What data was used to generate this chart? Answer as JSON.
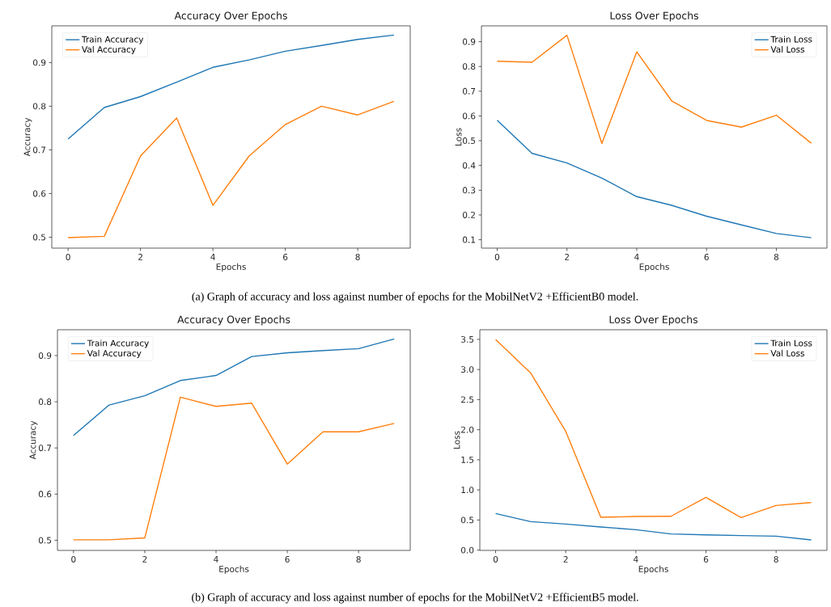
{
  "chart_data": [
    {
      "type": "line",
      "title": "Accuracy Over Epochs",
      "xlabel": "Epochs",
      "ylabel": "Accuracy",
      "x": [
        0,
        1,
        2,
        3,
        4,
        5,
        6,
        7,
        8,
        9
      ],
      "series": [
        {
          "name": "Train Accuracy",
          "color": "#1f77b4",
          "values": [
            0.725,
            0.797,
            0.822,
            0.855,
            0.889,
            0.906,
            0.926,
            0.939,
            0.953,
            0.963
          ]
        },
        {
          "name": "Val Accuracy",
          "color": "#ff7f0e",
          "values": [
            0.499,
            0.502,
            0.686,
            0.773,
            0.573,
            0.686,
            0.758,
            0.8,
            0.78,
            0.811
          ]
        }
      ],
      "xlim": [
        -0.45,
        9.45
      ],
      "ylim": [
        0.475,
        0.984
      ],
      "xticks": [
        0,
        2,
        4,
        6,
        8
      ],
      "yticks": [
        0.5,
        0.6,
        0.7,
        0.8,
        0.9
      ],
      "legend": "top left",
      "line_style": "solid",
      "marker": "none",
      "annotations": [
        "(a) Graph of accuracy and loss against number of epochs for the MobilNetV2 +EfficientB0 model."
      ]
    },
    {
      "type": "line",
      "title": "Loss Over Epochs",
      "xlabel": "Epochs",
      "ylabel": "Loss",
      "x": [
        0,
        1,
        2,
        3,
        4,
        5,
        6,
        7,
        8,
        9
      ],
      "series": [
        {
          "name": "Train Loss",
          "color": "#1f77b4",
          "values": [
            0.583,
            0.449,
            0.41,
            0.349,
            0.274,
            0.239,
            0.195,
            0.16,
            0.125,
            0.108
          ]
        },
        {
          "name": "Val Loss",
          "color": "#ff7f0e",
          "values": [
            0.821,
            0.817,
            0.926,
            0.489,
            0.859,
            0.661,
            0.582,
            0.555,
            0.603,
            0.49
          ]
        }
      ],
      "xlim": [
        -0.45,
        9.45
      ],
      "ylim": [
        0.066,
        0.964
      ],
      "xticks": [
        0,
        2,
        4,
        6,
        8
      ],
      "yticks": [
        0.1,
        0.2,
        0.3,
        0.4,
        0.5,
        0.6,
        0.7,
        0.8,
        0.9
      ],
      "legend": "top right",
      "line_style": "solid",
      "marker": "none"
    },
    {
      "type": "line",
      "title": "Accuracy Over Epochs",
      "xlabel": "Epochs",
      "ylabel": "Accuracy",
      "x": [
        0,
        1,
        2,
        3,
        4,
        5,
        6,
        7,
        8,
        9
      ],
      "series": [
        {
          "name": "Train Accuracy",
          "color": "#1f77b4",
          "values": [
            0.727,
            0.793,
            0.813,
            0.846,
            0.857,
            0.898,
            0.906,
            0.911,
            0.915,
            0.936
          ]
        },
        {
          "name": "Val Accuracy",
          "color": "#ff7f0e",
          "values": [
            0.501,
            0.501,
            0.505,
            0.81,
            0.79,
            0.797,
            0.665,
            0.735,
            0.735,
            0.753
          ]
        }
      ],
      "xlim": [
        -0.45,
        9.45
      ],
      "ylim": [
        0.478,
        0.956
      ],
      "xticks": [
        0,
        2,
        4,
        6,
        8
      ],
      "yticks": [
        0.5,
        0.6,
        0.7,
        0.8,
        0.9
      ],
      "legend": "top left",
      "line_style": "solid",
      "marker": "none",
      "annotations": [
        "(b) Graph of accuracy and loss against number of epochs for the MobilNetV2 +EfficientB5 model."
      ]
    },
    {
      "type": "line",
      "title": "Loss Over Epochs",
      "xlabel": "Epochs",
      "ylabel": "Loss",
      "x": [
        0,
        1,
        2,
        3,
        4,
        5,
        6,
        7,
        8,
        9
      ],
      "series": [
        {
          "name": "Train Loss",
          "color": "#1f77b4",
          "values": [
            0.607,
            0.473,
            0.433,
            0.384,
            0.339,
            0.268,
            0.254,
            0.241,
            0.232,
            0.17
          ]
        },
        {
          "name": "Val Loss",
          "color": "#ff7f0e",
          "values": [
            3.5,
            2.942,
            1.973,
            0.545,
            0.558,
            0.562,
            0.875,
            0.54,
            0.741,
            0.79
          ]
        }
      ],
      "xlim": [
        -0.45,
        9.45
      ],
      "ylim": [
        -0.005,
        3.66
      ],
      "xticks": [
        0,
        2,
        4,
        6,
        8
      ],
      "yticks": [
        {
          "value": 0,
          "label": "0.0"
        },
        {
          "value": 0.5,
          "label": "0.5"
        },
        {
          "value": 1,
          "label": "1.0"
        },
        {
          "value": 1.5,
          "label": "1.5"
        },
        {
          "value": 2,
          "label": "2.0"
        },
        {
          "value": 2.5,
          "label": "2.5"
        },
        {
          "value": 3,
          "label": "3.0"
        },
        {
          "value": 3.5,
          "label": "3.5"
        }
      ],
      "legend": "top right",
      "line_style": "solid",
      "marker": "none"
    }
  ]
}
